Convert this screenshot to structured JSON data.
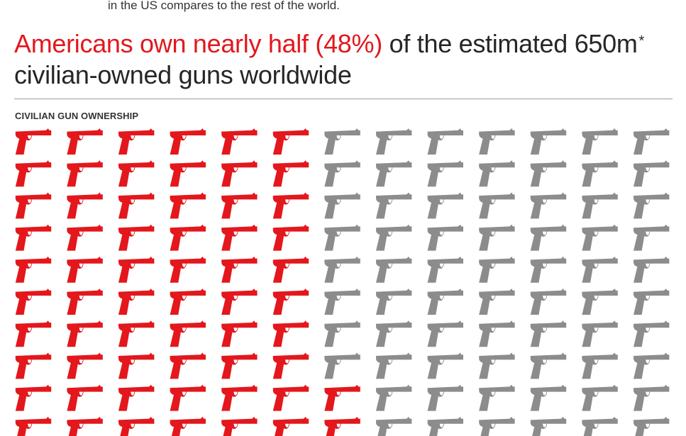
{
  "intro": {
    "text": "in the US compares to the rest of the world."
  },
  "headline": {
    "highlight": "Americans own nearly half (48%)",
    "rest": " of the estimated 650m",
    "asterisk": "*",
    "line2": "civilian-owned guns worldwide"
  },
  "section_label": "CIVILIAN GUN OWNERSHIP",
  "colors": {
    "us": "#e3171c",
    "rest_of_world": "#8c8c8c",
    "text": "#262626"
  },
  "chart_data": {
    "type": "pictogram",
    "icon": "handgun-icon",
    "columns": 13,
    "visible_rows": 10,
    "column_fill_order": "top-to-bottom, left-to-right",
    "series": [
      {
        "name": "Americans",
        "share_percent": 48,
        "color": "#e3171c"
      },
      {
        "name": "",
        "share_percent": 52,
        "color": "#8c8c8c"
      }
    ],
    "red_icons_per_visible_row": [
      6,
      6,
      6,
      6,
      6,
      6,
      6,
      6,
      7,
      7
    ]
  }
}
